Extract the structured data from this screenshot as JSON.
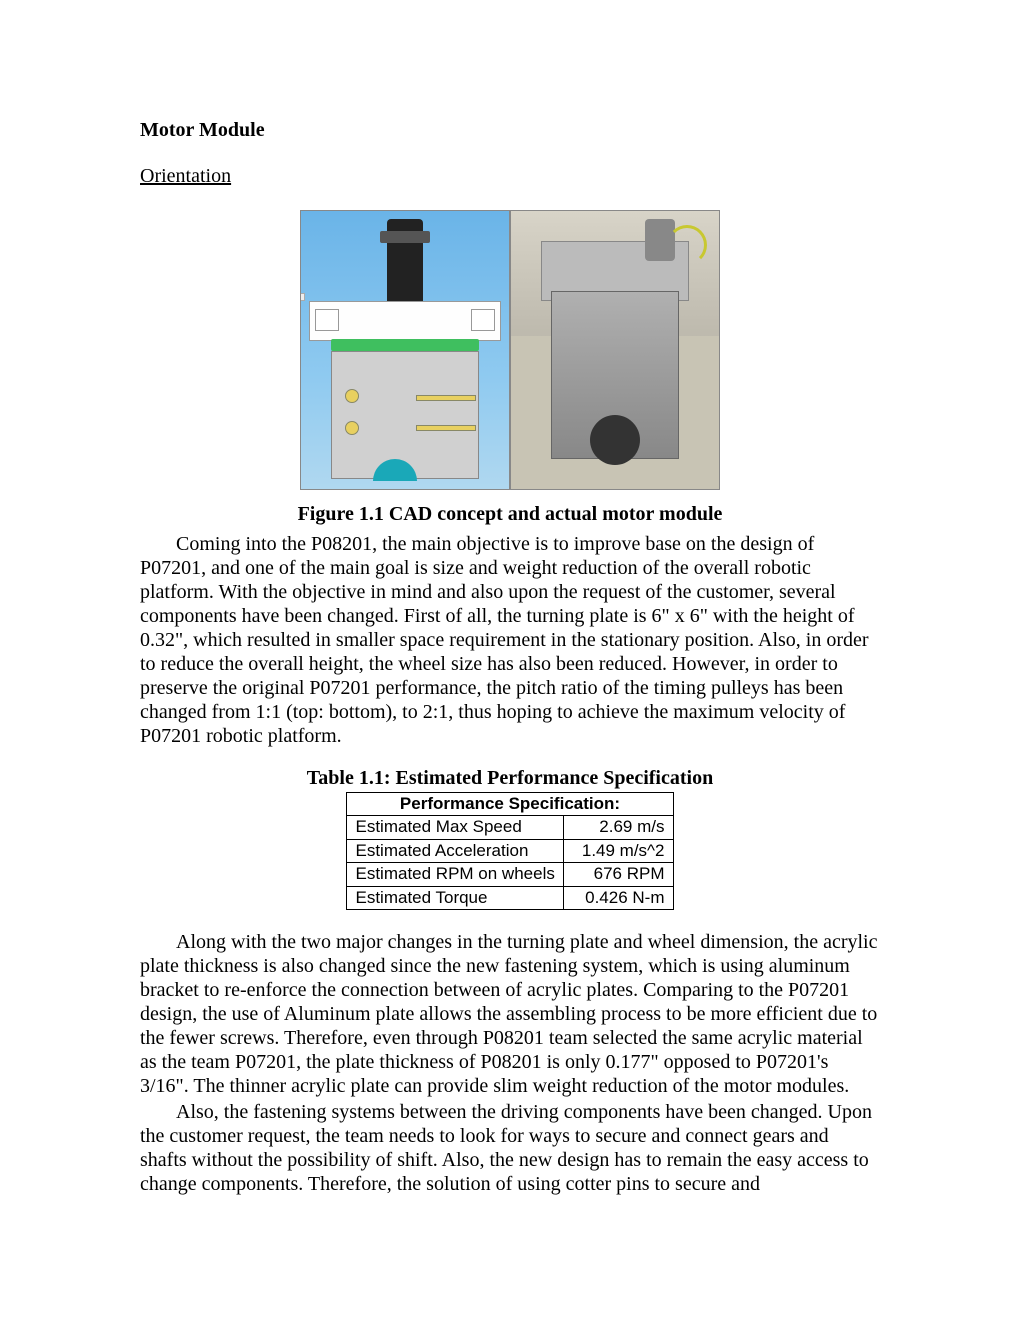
{
  "section_title": "Motor Module",
  "subsection": "Orientation",
  "figure": {
    "caption": "Figure 1.1 CAD concept and actual motor module"
  },
  "para1": "Coming into the P08201, the main objective is to improve base on the design of P07201, and one of the main goal is size and weight reduction of the overall robotic platform. With the objective in mind and also upon the request of the customer, several components have been changed. First of all, the turning plate is 6\" x 6\" with the height of 0.32\", which resulted in smaller space requirement in the stationary position.  Also, in order to reduce the overall height, the wheel size has also been reduced. However, in order to preserve the original P07201 performance, the pitch ratio of the timing pulleys has been changed from 1:1 (top: bottom), to 2:1, thus hoping to achieve the maximum velocity of P07201 robotic platform.",
  "table": {
    "title": "Table 1.1: Estimated Performance Specification",
    "header": "Performance Specification:",
    "rows": [
      {
        "label": "Estimated Max Speed",
        "value": "2.69 m/s"
      },
      {
        "label": "Estimated Acceleration",
        "value": "1.49 m/s^2"
      },
      {
        "label": "Estimated RPM on wheels",
        "value": "676 RPM"
      },
      {
        "label": "Estimated Torque",
        "value": "0.426 N-m"
      }
    ]
  },
  "para2": "Along with the two major changes in the turning plate and wheel dimension, the acrylic plate thickness is also changed since the new fastening system, which is using aluminum bracket to re-enforce the connection between of acrylic plates. Comparing to the P07201 design, the use of Aluminum plate allows the assembling process to be more efficient due to the fewer screws. Therefore, even through P08201 team selected the same acrylic material as the team P07201, the plate thickness of P08201 is only 0.177\" opposed to P07201's 3/16\". The thinner acrylic plate can provide slim weight reduction of the motor modules.",
  "para3": "Also, the fastening systems between the driving components have been changed. Upon the customer request, the team needs to look for ways to secure and connect gears and shafts without the possibility of shift. Also, the new design has to remain the easy access to change components. Therefore, the solution of using cotter pins to secure and"
}
